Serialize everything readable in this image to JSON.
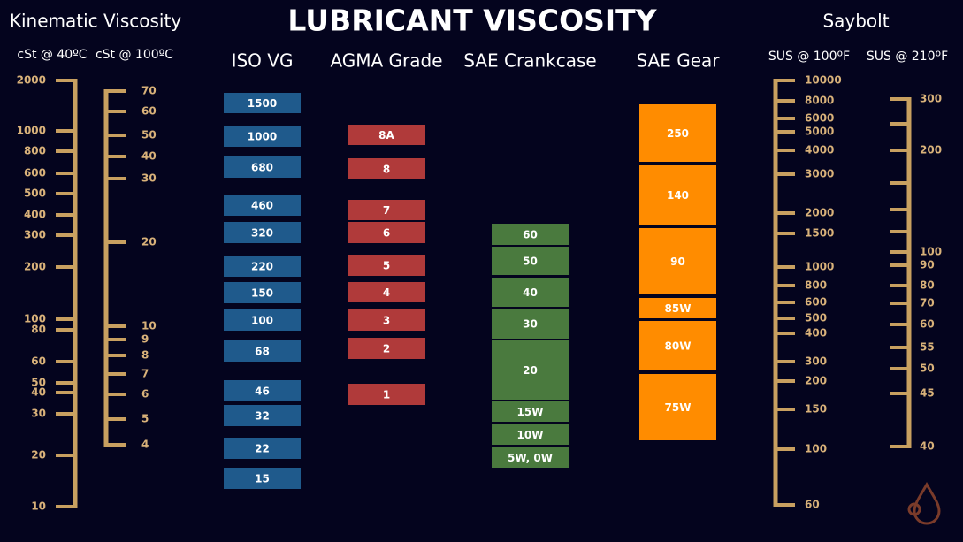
{
  "title": "LUBRICANT VISCOSITY",
  "kinematic": {
    "title": "Kinematic Viscosity",
    "scales": [
      {
        "label": "cSt @ 40ºC",
        "ticks": [
          2000,
          1000,
          800,
          600,
          500,
          400,
          300,
          200,
          100,
          80,
          60,
          50,
          40,
          30,
          20,
          10
        ]
      },
      {
        "label": "cSt @ 100ºC",
        "ticks": [
          70,
          60,
          50,
          40,
          30,
          20,
          10,
          9,
          8,
          7,
          6,
          5,
          4
        ]
      }
    ]
  },
  "saybolt": {
    "title": "Saybolt",
    "scales": [
      {
        "label": "SUS @ 100ºF",
        "ticks": [
          10000,
          8000,
          6000,
          5000,
          4000,
          3000,
          2000,
          1500,
          1000,
          800,
          600,
          500,
          400,
          300,
          200,
          150,
          100,
          60
        ]
      },
      {
        "label": "SUS @ 210ºF",
        "ticks": [
          300,
          200,
          100,
          90,
          80,
          70,
          60,
          55,
          50,
          45,
          40
        ]
      }
    ]
  },
  "columns": [
    {
      "title": "ISO VG",
      "items": [
        "1500",
        "1000",
        "680",
        "460",
        "320",
        "220",
        "150",
        "100",
        "68",
        "46",
        "32",
        "22",
        "15"
      ]
    },
    {
      "title": "AGMA Grade",
      "items": [
        "8A",
        "8",
        "7",
        "6",
        "5",
        "4",
        "3",
        "2",
        "1"
      ]
    },
    {
      "title": "SAE Crankcase",
      "items": [
        "60",
        "50",
        "40",
        "30",
        "20",
        "15W",
        "10W",
        "5W, 0W"
      ]
    },
    {
      "title": "SAE Gear",
      "items": [
        "250",
        "140",
        "90",
        "85W",
        "80W",
        "75W"
      ]
    }
  ]
}
